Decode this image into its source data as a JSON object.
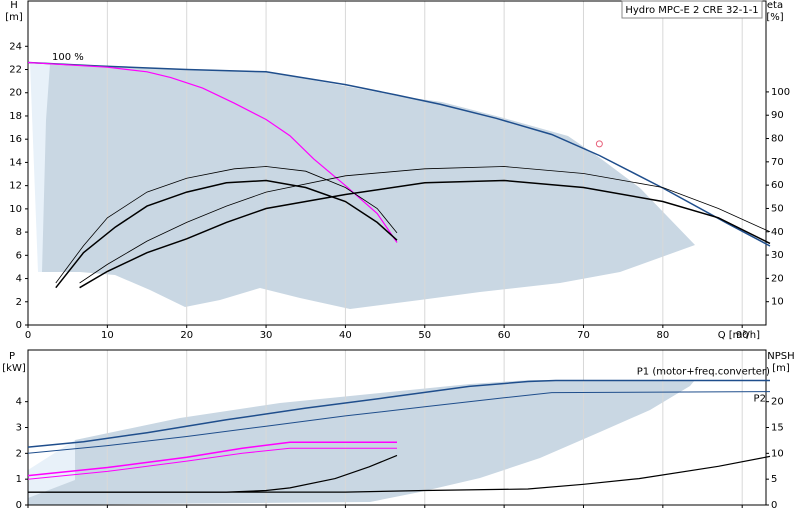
{
  "chart_data": [
    {
      "type": "line",
      "title": "Hydro MPC-E 2 CRE 32-1-1",
      "annotation": "100 %",
      "y_label": "H",
      "y_unit": "[m]",
      "y2_label": "eta",
      "y2_unit": "[%]",
      "x_label": "Q [m³/h]",
      "xlim": [
        0,
        93
      ],
      "ylim": [
        0,
        27.9
      ],
      "y2lim": [
        0,
        139
      ],
      "xticks": [
        0,
        10,
        20,
        30,
        40,
        50,
        60,
        70,
        80,
        90
      ],
      "yticks": [
        0,
        2,
        4,
        6,
        8,
        10,
        12,
        14,
        16,
        18,
        20,
        22,
        24
      ],
      "y2ticks": [
        10,
        20,
        30,
        40,
        50,
        60,
        70,
        80,
        90,
        100
      ],
      "grid": true,
      "marker": {
        "x": 72,
        "y": 15.6,
        "color": "#e8607a"
      },
      "series": [
        {
          "color": "#1f4e8c",
          "width": 1.5,
          "x": [
            0,
            9,
            20,
            30,
            40,
            46.5,
            52,
            59,
            66,
            72,
            80,
            88,
            93.5
          ],
          "values": [
            22.6,
            22.3,
            22.0,
            21.8,
            20.7,
            19.8,
            19.0,
            17.8,
            16.4,
            14.6,
            11.8,
            8.8,
            6.8
          ]
        },
        {
          "color": "#ff00ff",
          "width": 1.2,
          "x": [
            0,
            10,
            15,
            18,
            22,
            26,
            30,
            33,
            36,
            40,
            44,
            46.5
          ],
          "values": [
            22.6,
            22.2,
            21.8,
            21.3,
            20.4,
            19.1,
            17.7,
            16.3,
            14.3,
            12.0,
            9.6,
            7.1
          ]
        },
        {
          "color": "#000000",
          "width": 0.8,
          "axis": "y2",
          "x": [
            3.5,
            7,
            10,
            15,
            20,
            26,
            30,
            35,
            40,
            44,
            46.5
          ],
          "values": [
            18,
            34,
            46,
            57,
            63,
            67,
            68,
            66,
            59,
            50,
            39.5
          ]
        },
        {
          "color": "#000000",
          "width": 1.5,
          "axis": "y2",
          "x": [
            3.5,
            7,
            11,
            15,
            20,
            25,
            30,
            35,
            40,
            44,
            46.5
          ],
          "values": [
            16,
            31,
            42,
            51,
            57,
            61,
            62,
            59,
            53,
            44,
            36.4
          ]
        },
        {
          "color": "#000000",
          "width": 0.8,
          "axis": "y2",
          "x": [
            6.5,
            10,
            15,
            20,
            25,
            30,
            40,
            50,
            60,
            70,
            80,
            87,
            93.5
          ],
          "values": [
            18,
            26,
            36,
            44,
            51,
            57,
            64,
            67,
            68,
            65,
            59,
            50,
            40
          ]
        },
        {
          "color": "#000000",
          "width": 1.5,
          "axis": "y2",
          "x": [
            6.5,
            10,
            15,
            20,
            25,
            30,
            40,
            50,
            60,
            70,
            80,
            87,
            93.5
          ],
          "values": [
            16,
            23,
            31,
            37,
            44,
            50,
            56,
            61,
            62,
            59,
            53,
            46,
            35
          ]
        }
      ]
    },
    {
      "type": "line",
      "y_label": "P",
      "y_unit": "[kW]",
      "y2_label": "NPSH",
      "y2_unit": "[m]",
      "xlim": [
        0,
        93
      ],
      "ylim": [
        0,
        6
      ],
      "y2lim": [
        0,
        30
      ],
      "xticks": [
        0,
        10,
        20,
        30,
        40,
        50,
        60,
        70,
        80,
        90
      ],
      "yticks": [
        0,
        1,
        2,
        3,
        4
      ],
      "y2ticks": [
        0,
        5,
        10,
        15,
        20
      ],
      "grid": true,
      "series": [
        {
          "name": "P1 (motor+freq.converter)",
          "color": "#1f4e8c",
          "width": 1.5,
          "x": [
            0,
            7,
            15,
            25,
            35,
            45,
            55.6,
            63,
            66.5,
            93.5
          ],
          "values": [
            2.24,
            2.45,
            2.8,
            3.3,
            3.75,
            4.15,
            4.59,
            4.78,
            4.82,
            4.82
          ]
        },
        {
          "name": "P2",
          "color": "#1f4e8c",
          "width": 1,
          "x": [
            0,
            10,
            20,
            30,
            40,
            50,
            60,
            66,
            93.5
          ],
          "values": [
            2.0,
            2.3,
            2.65,
            3.05,
            3.45,
            3.8,
            4.15,
            4.35,
            4.39
          ]
        },
        {
          "color": "#ff00ff",
          "width": 1.5,
          "x": [
            0,
            10,
            20,
            27,
            33,
            46.5
          ],
          "values": [
            1.14,
            1.45,
            1.85,
            2.2,
            2.43,
            2.43
          ]
        },
        {
          "color": "#ff00ff",
          "width": 1,
          "x": [
            0,
            10,
            20,
            27,
            33,
            46.5
          ],
          "values": [
            1.0,
            1.3,
            1.7,
            2.0,
            2.2,
            2.2
          ]
        },
        {
          "color": "#000000",
          "width": 1.2,
          "axis": "y2",
          "x": [
            0,
            25,
            30,
            33,
            38.7,
            43,
            46.5
          ],
          "values": [
            2.5,
            2.5,
            2.8,
            3.3,
            5.1,
            7.4,
            9.6
          ]
        },
        {
          "color": "#000000",
          "width": 1.2,
          "axis": "y2",
          "x": [
            0,
            40,
            50,
            63,
            70,
            77,
            87,
            93.5
          ],
          "values": [
            2.5,
            2.5,
            2.8,
            3.1,
            4.0,
            5.1,
            7.5,
            9.4
          ]
        }
      ]
    }
  ]
}
